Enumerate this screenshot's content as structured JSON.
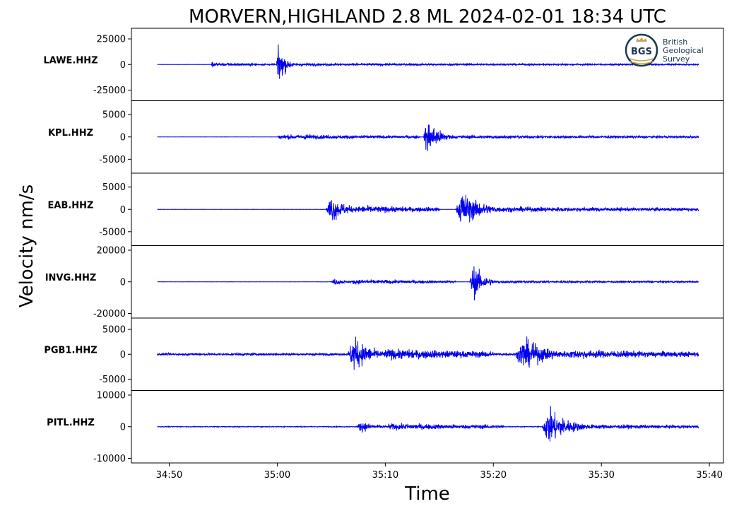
{
  "chart_data": {
    "type": "line",
    "title": "MORVERN,HIGHLAND 2.8 ML   2024-02-01 18:34 UTC",
    "xlabel": "Time",
    "ylabel": "Velocity nm/s",
    "x_range_seconds_after_18_34": [
      48.9,
      99.0
    ],
    "x_ticks": [
      {
        "label": "34:50",
        "t": 50
      },
      {
        "label": "35:00",
        "t": 60
      },
      {
        "label": "35:10",
        "t": 70
      },
      {
        "label": "35:20",
        "t": 80
      },
      {
        "label": "35:30",
        "t": 90
      },
      {
        "label": "35:40",
        "t": 100
      }
    ],
    "series": [
      {
        "name": "LAWE.HHZ",
        "ylim": [
          -34000,
          34000
        ],
        "yticks": [
          {
            "label": "25000",
            "v": 25000
          },
          {
            "label": "0",
            "v": 0
          },
          {
            "label": "-25000",
            "v": -25000
          }
        ],
        "arrivals": [
          {
            "t": 53.9,
            "amp": 7000,
            "dur": 0.4
          },
          {
            "t": 59.9,
            "amp": 31000,
            "dur": 1.5
          }
        ],
        "coda": [
          {
            "from": 53.9,
            "to": 59.8,
            "amp": 2600
          },
          {
            "from": 61.4,
            "to": 99.0,
            "amp": 2000
          }
        ],
        "background": 150
      },
      {
        "name": "KPL.HHZ",
        "ylim": [
          -7800,
          7800
        ],
        "yticks": [
          {
            "label": "5000",
            "v": 5000
          },
          {
            "label": "0",
            "v": 0
          },
          {
            "label": "-5000",
            "v": -5000
          }
        ],
        "arrivals": [
          {
            "t": 62.4,
            "amp": 1600,
            "dur": 1.5
          },
          {
            "t": 73.5,
            "amp": 7000,
            "dur": 2.5
          }
        ],
        "coda": [
          {
            "from": 60.1,
            "to": 73.2,
            "amp": 900
          },
          {
            "from": 76.0,
            "to": 99.0,
            "amp": 700
          }
        ],
        "background": 40
      },
      {
        "name": "EAB.HHZ",
        "ylim": [
          -7800,
          7800
        ],
        "yticks": [
          {
            "label": "5000",
            "v": 5000
          },
          {
            "label": "0",
            "v": 0
          },
          {
            "label": "-5000",
            "v": -5000
          }
        ],
        "arrivals": [
          {
            "t": 64.5,
            "amp": 5200,
            "dur": 3.0
          },
          {
            "t": 76.5,
            "amp": 6800,
            "dur": 4.0
          }
        ],
        "coda": [
          {
            "from": 67.5,
            "to": 75.0,
            "amp": 1400
          },
          {
            "from": 80.5,
            "to": 99.0,
            "amp": 1000
          }
        ],
        "background": 40
      },
      {
        "name": "INVG.HHZ",
        "ylim": [
          -22000,
          22000
        ],
        "yticks": [
          {
            "label": "20000",
            "v": 20000
          },
          {
            "label": "0",
            "v": 0
          },
          {
            "label": "-20000",
            "v": -20000
          }
        ],
        "arrivals": [
          {
            "t": 65.0,
            "amp": 4000,
            "dur": 2.0
          },
          {
            "t": 77.8,
            "amp": 19000,
            "dur": 2.2
          }
        ],
        "coda": [
          {
            "from": 67.0,
            "to": 76.5,
            "amp": 2500
          },
          {
            "from": 80.0,
            "to": 99.0,
            "amp": 1500
          }
        ],
        "background": 120
      },
      {
        "name": "PGB1.HHZ",
        "ylim": [
          -7000,
          7000
        ],
        "yticks": [
          {
            "label": "5000",
            "v": 5000
          },
          {
            "label": "0",
            "v": 0
          },
          {
            "label": "-5000",
            "v": -5000
          }
        ],
        "arrivals": [
          {
            "t": 66.5,
            "amp": 6200,
            "dur": 3.5
          },
          {
            "t": 82.0,
            "amp": 5500,
            "dur": 5.0
          }
        ],
        "coda": [
          {
            "from": 70.0,
            "to": 80.0,
            "amp": 1800
          },
          {
            "from": 87.0,
            "to": 99.0,
            "amp": 1500
          }
        ],
        "background": 350
      },
      {
        "name": "PITL.HHZ",
        "ylim": [
          -11000,
          11000
        ],
        "yticks": [
          {
            "label": "10000",
            "v": 10000
          },
          {
            "label": "0",
            "v": 0
          },
          {
            "label": "-10000",
            "v": -10000
          }
        ],
        "arrivals": [
          {
            "t": 67.3,
            "amp": 3000,
            "dur": 3.0
          },
          {
            "t": 84.5,
            "amp": 10000,
            "dur": 4.0
          }
        ],
        "coda": [
          {
            "from": 70.3,
            "to": 81.0,
            "amp": 1700
          },
          {
            "from": 88.5,
            "to": 99.0,
            "amp": 1300
          }
        ],
        "background": 200
      }
    ]
  },
  "logo": {
    "initials": "BGS",
    "lines": [
      "British",
      "Geological",
      "Survey"
    ],
    "color": "#1b3a4b",
    "accent": "#c8a25a",
    "icon": "crown-icon"
  },
  "trace_color": "#0000ee"
}
